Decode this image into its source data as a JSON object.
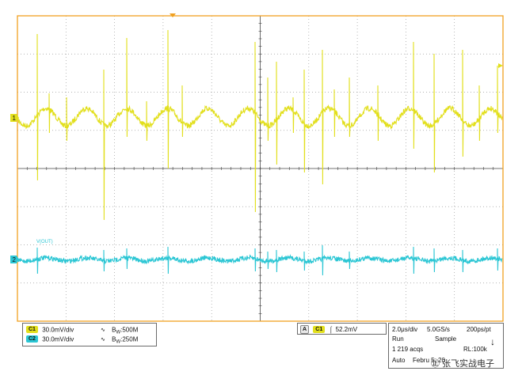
{
  "colors": {
    "ch1": "#e2df1c",
    "ch2": "#2bc6d4",
    "frame": "#f0a020",
    "grid": "#9a9a9a",
    "center_axis": "#444444",
    "background": "#ffffff"
  },
  "markers": {
    "ch1": "1",
    "ch2": "2",
    "ch2_trace_label": "V(OUT)"
  },
  "channels": [
    {
      "badge": "C1",
      "scale": "30.0mV/div",
      "bw_prefix": "B",
      "bw_sub": "W",
      "bw_value": ":500M"
    },
    {
      "badge": "C2",
      "scale": "30.0mV/div",
      "bw_prefix": "B",
      "bw_sub": "W",
      "bw_value": ":250M"
    }
  ],
  "trigger": {
    "mode_badge": "A",
    "source_badge": "C1",
    "slope": "⌠",
    "level": "52.2mV"
  },
  "acquisition": {
    "timebase": "2.0μs/div",
    "sample_rate": "5.0GS/s",
    "resolution": "200ps/pt",
    "state": "Run",
    "mode": "Sample",
    "acqs": "1 219 acqs",
    "record_length": "RL:100k",
    "trigger_mode": "Auto",
    "date": "Febru    5, 20"
  },
  "watermark": {
    "text": "㊣ 张飞实战电子"
  }
}
